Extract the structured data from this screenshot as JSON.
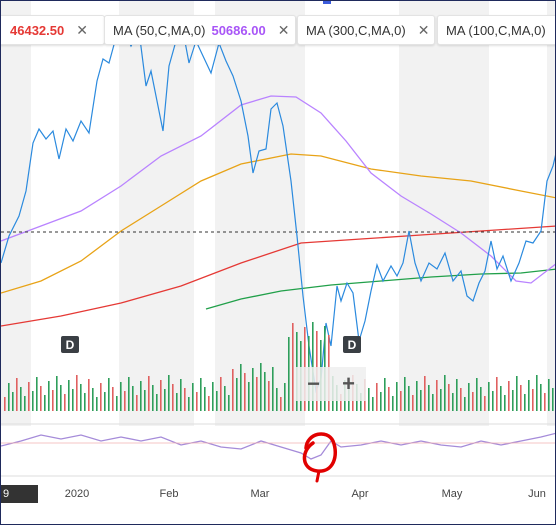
{
  "legend": {
    "series": [
      {
        "label": "",
        "value": "46432.50",
        "value_color": "#e53935"
      },
      {
        "label": "MA (50,C,MA,0)",
        "value": "50686.00",
        "value_color": "#a855f7"
      },
      {
        "label": "MA (300,C,MA,0)",
        "value": "",
        "value_color": "#333333"
      },
      {
        "label": "MA (100,C,MA,0)",
        "value": "",
        "value_color": "#333333"
      }
    ],
    "close_glyph": "✕"
  },
  "badges": {
    "left": "D",
    "right": "D"
  },
  "zoom": {
    "minus": "−",
    "plus": "+"
  },
  "date_flag": "9",
  "colors": {
    "price": "#2b8ade",
    "ma50": "#b983ff",
    "ma100": "#e8a317",
    "ma300": "#e53935",
    "ma_green": "#21a04a",
    "volume_up": "#2e9e5b",
    "volume_down": "#e06060",
    "oscillator": "#a58bd9",
    "annotation": "#e10000"
  },
  "chart_data": {
    "type": "line",
    "x_tick_labels": [
      "2020",
      "Feb",
      "Mar",
      "Apr",
      "May",
      "Jun"
    ],
    "series": []
  }
}
